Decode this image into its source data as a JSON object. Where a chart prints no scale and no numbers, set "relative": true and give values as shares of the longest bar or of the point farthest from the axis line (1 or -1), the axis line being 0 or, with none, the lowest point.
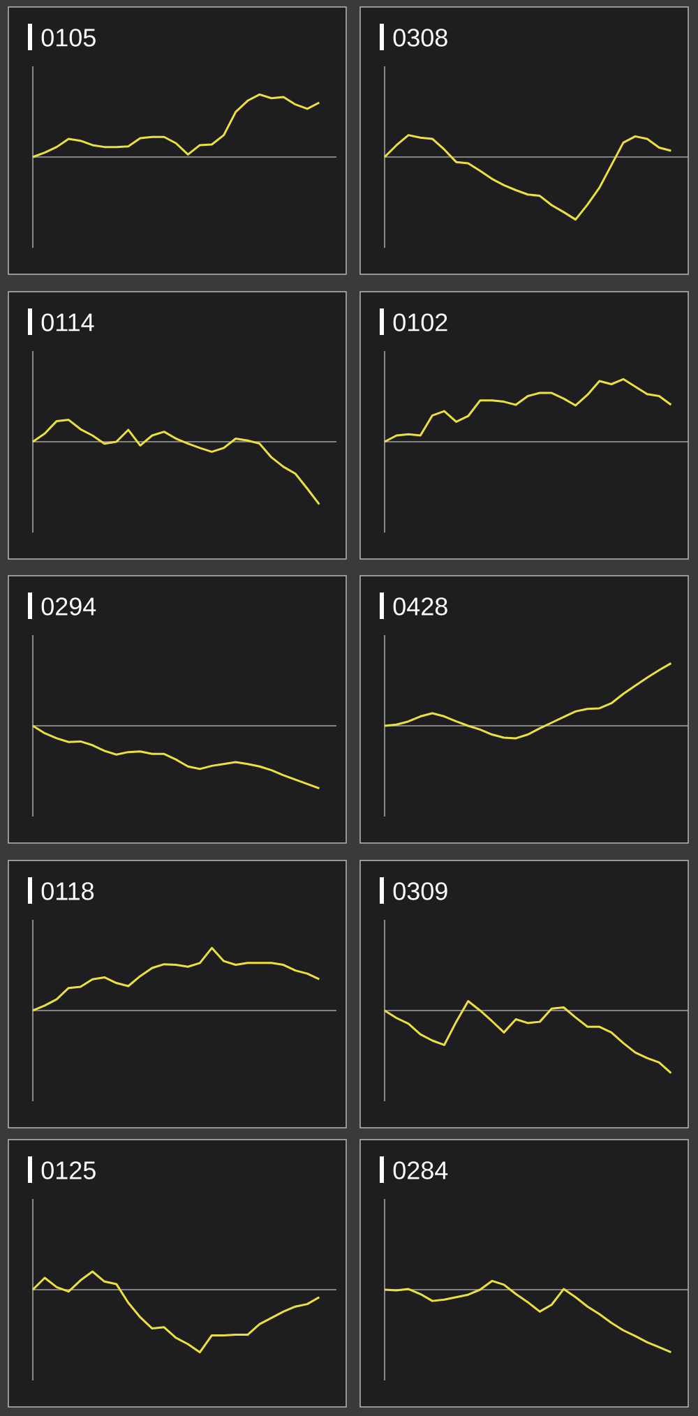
{
  "chart_data": [
    {
      "type": "line",
      "title": "0105",
      "relative": true,
      "color": "#ece040",
      "categories": [
        null,
        null,
        null,
        null,
        null,
        null,
        null,
        null,
        null,
        null,
        null,
        null,
        null,
        null,
        null,
        null,
        null,
        null,
        null,
        null,
        null,
        null,
        null,
        null,
        null
      ],
      "values": [
        0,
        0.07,
        0.16,
        0.29,
        0.26,
        0.19,
        0.16,
        0.16,
        0.17,
        0.3,
        0.32,
        0.32,
        0.22,
        0.04,
        0.19,
        0.2,
        0.35,
        0.72,
        0.9,
        1,
        0.94,
        0.96,
        0.84,
        0.77,
        0.87
      ]
    },
    {
      "type": "line",
      "title": "0308",
      "relative": true,
      "color": "#ece040",
      "categories": [
        null,
        null,
        null,
        null,
        null,
        null,
        null,
        null,
        null,
        null,
        null,
        null,
        null,
        null,
        null,
        null,
        null,
        null,
        null,
        null,
        null,
        null,
        null,
        null,
        null
      ],
      "values": [
        0,
        0.19,
        0.35,
        0.31,
        0.29,
        0.12,
        -0.08,
        -0.1,
        -0.22,
        -0.35,
        -0.45,
        -0.53,
        -0.6,
        -0.62,
        -0.77,
        -0.88,
        -1,
        -0.76,
        -0.49,
        -0.13,
        0.23,
        0.33,
        0.29,
        0.15,
        0.1
      ]
    },
    {
      "type": "line",
      "title": "0114",
      "relative": true,
      "color": "#ece040",
      "categories": [
        null,
        null,
        null,
        null,
        null,
        null,
        null,
        null,
        null,
        null,
        null,
        null,
        null,
        null,
        null,
        null,
        null,
        null,
        null,
        null,
        null,
        null,
        null,
        null,
        null
      ],
      "values": [
        0,
        0.13,
        0.33,
        0.35,
        0.2,
        0.1,
        -0.03,
        0,
        0.19,
        -0.06,
        0.1,
        0.16,
        0.05,
        -0.03,
        -0.1,
        -0.16,
        -0.1,
        0.05,
        0.02,
        -0.03,
        -0.25,
        -0.4,
        -0.51,
        -0.75,
        -1
      ]
    },
    {
      "type": "line",
      "title": "0102",
      "relative": true,
      "color": "#ece040",
      "categories": [
        null,
        null,
        null,
        null,
        null,
        null,
        null,
        null,
        null,
        null,
        null,
        null,
        null,
        null,
        null,
        null,
        null,
        null,
        null,
        null,
        null,
        null,
        null,
        null,
        null
      ],
      "values": [
        0,
        0.1,
        0.12,
        0.1,
        0.42,
        0.49,
        0.32,
        0.41,
        0.66,
        0.66,
        0.64,
        0.59,
        0.73,
        0.78,
        0.78,
        0.69,
        0.58,
        0.75,
        0.97,
        0.92,
        1,
        0.88,
        0.76,
        0.73,
        0.59
      ]
    },
    {
      "type": "line",
      "title": "0294",
      "relative": true,
      "color": "#ece040",
      "categories": [
        null,
        null,
        null,
        null,
        null,
        null,
        null,
        null,
        null,
        null,
        null,
        null,
        null,
        null,
        null,
        null,
        null,
        null,
        null,
        null,
        null,
        null,
        null,
        null,
        null
      ],
      "values": [
        0,
        -0.12,
        -0.2,
        -0.26,
        -0.25,
        -0.31,
        -0.4,
        -0.46,
        -0.42,
        -0.41,
        -0.45,
        -0.45,
        -0.54,
        -0.65,
        -0.69,
        -0.64,
        -0.61,
        -0.58,
        -0.61,
        -0.65,
        -0.71,
        -0.79,
        -0.86,
        -0.93,
        -1
      ]
    },
    {
      "type": "line",
      "title": "0428",
      "relative": true,
      "color": "#ece040",
      "categories": [
        null,
        null,
        null,
        null,
        null,
        null,
        null,
        null,
        null,
        null,
        null,
        null,
        null,
        null,
        null,
        null,
        null,
        null,
        null,
        null,
        null,
        null,
        null,
        null,
        null
      ],
      "values": [
        0,
        0.02,
        0.07,
        0.15,
        0.2,
        0.15,
        0.07,
        0,
        -0.06,
        -0.14,
        -0.19,
        -0.2,
        -0.14,
        -0.04,
        0.05,
        0.14,
        0.23,
        0.27,
        0.28,
        0.36,
        0.51,
        0.64,
        0.77,
        0.89,
        1
      ]
    },
    {
      "type": "line",
      "title": "0118",
      "relative": true,
      "color": "#ece040",
      "categories": [
        null,
        null,
        null,
        null,
        null,
        null,
        null,
        null,
        null,
        null,
        null,
        null,
        null,
        null,
        null,
        null,
        null,
        null,
        null,
        null,
        null,
        null,
        null,
        null,
        null
      ],
      "values": [
        0,
        0.08,
        0.18,
        0.36,
        0.38,
        0.5,
        0.53,
        0.44,
        0.39,
        0.55,
        0.68,
        0.74,
        0.73,
        0.7,
        0.76,
        1,
        0.79,
        0.73,
        0.76,
        0.76,
        0.76,
        0.73,
        0.64,
        0.59,
        0.5
      ]
    },
    {
      "type": "line",
      "title": "0309",
      "relative": true,
      "color": "#ece040",
      "categories": [
        null,
        null,
        null,
        null,
        null,
        null,
        null,
        null,
        null,
        null,
        null,
        null,
        null,
        null,
        null,
        null,
        null,
        null,
        null,
        null,
        null,
        null,
        null,
        null,
        null
      ],
      "values": [
        0,
        -0.12,
        -0.21,
        -0.38,
        -0.48,
        -0.55,
        -0.18,
        0.15,
        0,
        -0.17,
        -0.35,
        -0.14,
        -0.2,
        -0.18,
        0.03,
        0.05,
        -0.11,
        -0.26,
        -0.26,
        -0.35,
        -0.52,
        -0.67,
        -0.76,
        -0.83,
        -1
      ]
    },
    {
      "type": "line",
      "title": "0125",
      "relative": true,
      "color": "#ece040",
      "categories": [
        null,
        null,
        null,
        null,
        null,
        null,
        null,
        null,
        null,
        null,
        null,
        null,
        null,
        null,
        null,
        null,
        null,
        null,
        null,
        null,
        null,
        null,
        null,
        null,
        null
      ],
      "values": [
        0,
        0.19,
        0.04,
        -0.03,
        0.15,
        0.29,
        0.13,
        0.09,
        -0.21,
        -0.44,
        -0.62,
        -0.6,
        -0.77,
        -0.87,
        -1,
        -0.73,
        -0.73,
        -0.72,
        -0.72,
        -0.55,
        -0.45,
        -0.35,
        -0.27,
        -0.23,
        -0.12
      ]
    },
    {
      "type": "line",
      "title": "0284",
      "relative": true,
      "color": "#ece040",
      "categories": [
        null,
        null,
        null,
        null,
        null,
        null,
        null,
        null,
        null,
        null,
        null,
        null,
        null,
        null,
        null,
        null,
        null,
        null,
        null,
        null,
        null,
        null,
        null,
        null,
        null
      ],
      "values": [
        0,
        -0.01,
        0.01,
        -0.07,
        -0.18,
        -0.16,
        -0.12,
        -0.08,
        0,
        0.14,
        0.08,
        -0.07,
        -0.2,
        -0.35,
        -0.24,
        0.01,
        -0.12,
        -0.27,
        -0.39,
        -0.53,
        -0.65,
        -0.74,
        -0.84,
        -0.92,
        -1
      ]
    }
  ]
}
